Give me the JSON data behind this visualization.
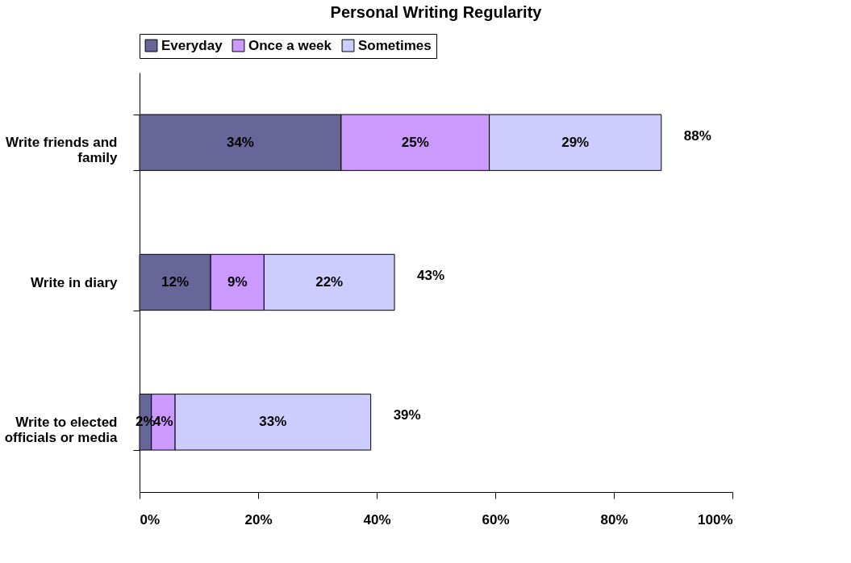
{
  "chart_data": {
    "type": "bar",
    "orientation": "horizontal",
    "stacked": true,
    "title": "Personal Writing Regularity",
    "categories": [
      "Write friends and family",
      "Write in diary",
      "Write to elected officials or media"
    ],
    "series": [
      {
        "name": "Everyday",
        "color": "#666699",
        "values": [
          34,
          12,
          2
        ],
        "value_labels": [
          "34%",
          "12%",
          "2%"
        ]
      },
      {
        "name": "Once a week",
        "color": "#cc99ff",
        "values": [
          25,
          9,
          4
        ],
        "value_labels": [
          "25%",
          "9%",
          "4%"
        ]
      },
      {
        "name": "Sometimes",
        "color": "#ccccff",
        "values": [
          29,
          22,
          33
        ],
        "value_labels": [
          "29%",
          "22%",
          "33%"
        ]
      }
    ],
    "totals": [
      "88%",
      "43%",
      "39%"
    ],
    "xlim": [
      0,
      100
    ],
    "xticks": [
      {
        "value": 0,
        "label": "0%"
      },
      {
        "value": 20,
        "label": "20%"
      },
      {
        "value": 40,
        "label": "40%"
      },
      {
        "value": 60,
        "label": "60%"
      },
      {
        "value": 80,
        "label": "80%"
      },
      {
        "value": 100,
        "label": "100%"
      }
    ],
    "grid": false,
    "legend": "top"
  }
}
